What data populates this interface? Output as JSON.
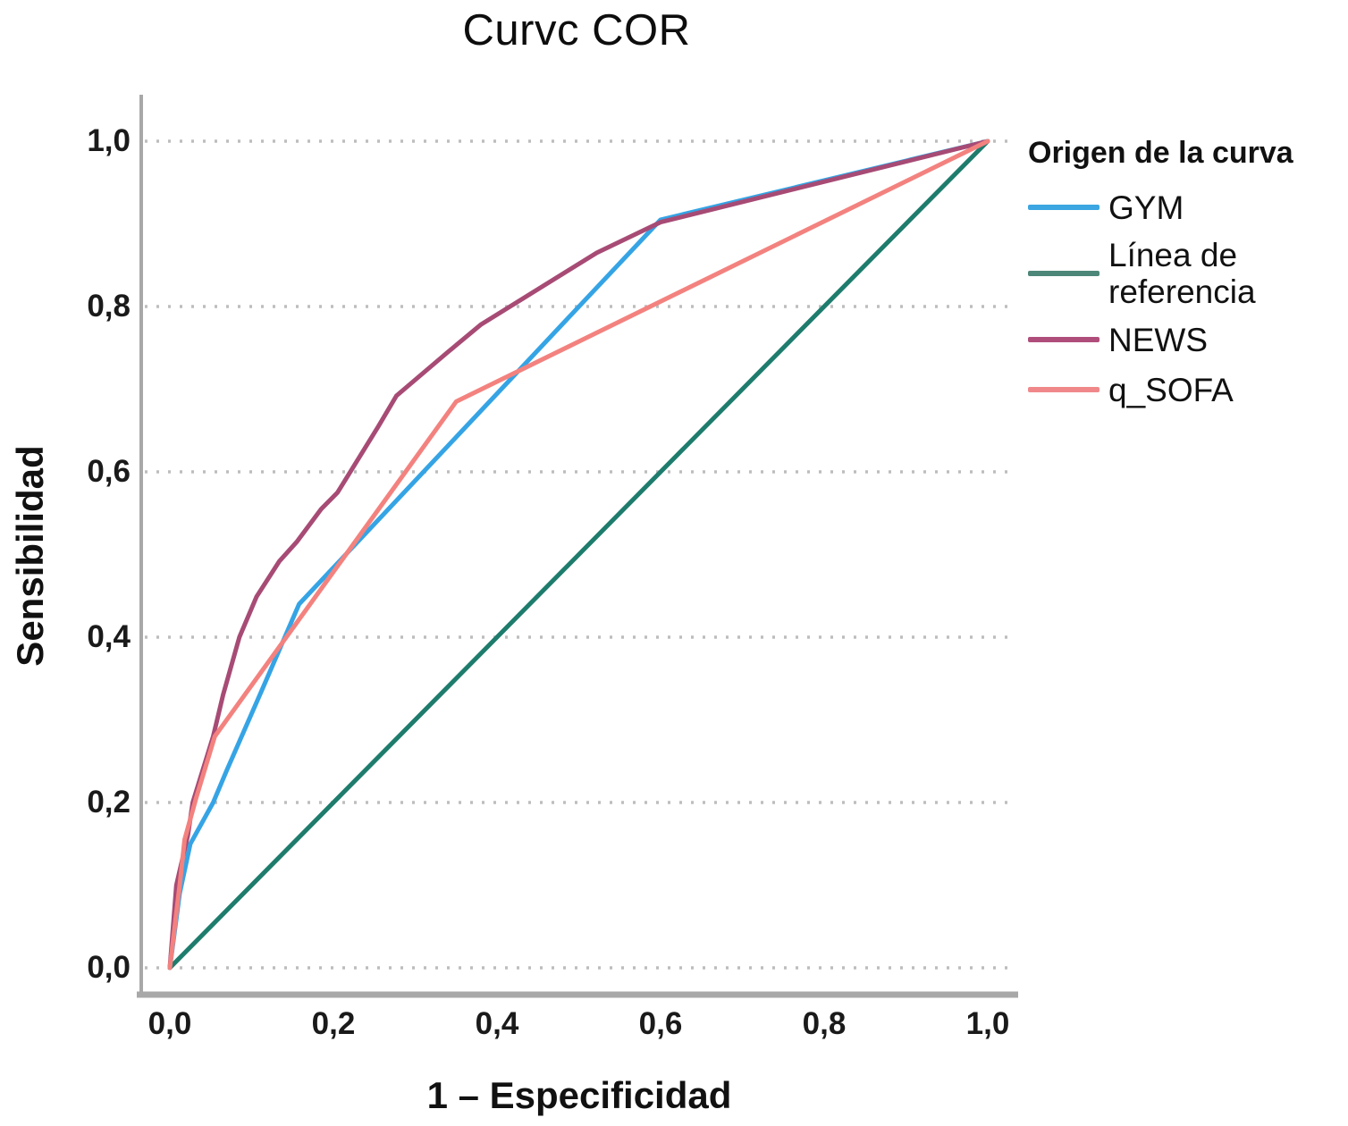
{
  "title": "Curvc COR",
  "axes": {
    "x_label": "1 – Especificidad",
    "y_label": "Sensibilidad",
    "x_ticks": {
      "values": [
        0,
        0.2,
        0.4,
        0.6,
        0.8,
        1.0
      ],
      "labels": [
        "0,0",
        "0,2",
        "0,4",
        "0,6",
        "0,8",
        "1,0"
      ]
    },
    "y_ticks": {
      "values": [
        0,
        0.2,
        0.4,
        0.6,
        0.8,
        1.0
      ],
      "labels": [
        "0,0",
        "0,2",
        "0,4",
        "0,6",
        "0,8",
        "1,0"
      ]
    }
  },
  "legend": {
    "title": "Origen de la curva",
    "items": [
      {
        "label": "GYM",
        "color": "#3BA6E2"
      },
      {
        "label": "Línea de referencia",
        "color": "#4D8779"
      },
      {
        "label": "NEWS",
        "color": "#B04E7B"
      },
      {
        "label": "q_SOFA",
        "color": "#F0888A"
      }
    ]
  },
  "chart_data": {
    "type": "line",
    "title": "Curvc COR",
    "xlabel": "1 – Especificidad",
    "ylabel": "Sensibilidad",
    "xlim": [
      0,
      1
    ],
    "ylim": [
      0,
      1
    ],
    "grid": "horizontal-dotted",
    "grid_color": "#bdbdbd",
    "axis_color": "#a8a8a8",
    "legend_position": "right",
    "series": [
      {
        "name": "GYM",
        "color": "#35A4E5",
        "points": [
          [
            0,
            0
          ],
          [
            0.012,
            0.09
          ],
          [
            0.025,
            0.15
          ],
          [
            0.053,
            0.2
          ],
          [
            0.07,
            0.24
          ],
          [
            0.11,
            0.33
          ],
          [
            0.158,
            0.44
          ],
          [
            0.6,
            0.905
          ],
          [
            1,
            1
          ]
        ]
      },
      {
        "name": "Línea de referencia",
        "color": "#1E7C6D",
        "points": [
          [
            0,
            0
          ],
          [
            1,
            1
          ]
        ]
      },
      {
        "name": "NEWS",
        "color": "#A74B75",
        "points": [
          [
            0,
            0
          ],
          [
            0.008,
            0.1
          ],
          [
            0.022,
            0.16
          ],
          [
            0.028,
            0.2
          ],
          [
            0.053,
            0.28
          ],
          [
            0.065,
            0.33
          ],
          [
            0.085,
            0.4
          ],
          [
            0.106,
            0.449
          ],
          [
            0.134,
            0.492
          ],
          [
            0.155,
            0.515
          ],
          [
            0.185,
            0.555
          ],
          [
            0.205,
            0.575
          ],
          [
            0.255,
            0.655
          ],
          [
            0.277,
            0.692
          ],
          [
            0.34,
            0.745
          ],
          [
            0.38,
            0.778
          ],
          [
            0.522,
            0.865
          ],
          [
            0.6,
            0.902
          ],
          [
            1,
            1
          ]
        ]
      },
      {
        "name": "q_SOFA",
        "color": "#F3827F",
        "points": [
          [
            0,
            0
          ],
          [
            0.012,
            0.1
          ],
          [
            0.018,
            0.155
          ],
          [
            0.032,
            0.205
          ],
          [
            0.055,
            0.28
          ],
          [
            0.35,
            0.685
          ],
          [
            1,
            1
          ]
        ]
      }
    ]
  }
}
